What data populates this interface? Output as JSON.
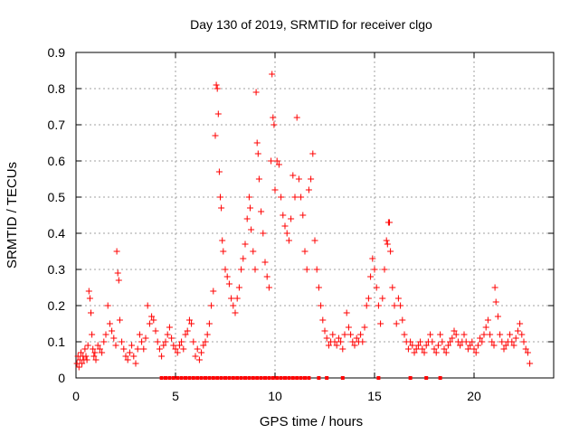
{
  "chart_data": {
    "type": "scatter",
    "title": "Day 130 of 2019, SRMTID for receiver clgo",
    "xlabel": "GPS time / hours",
    "ylabel": "SRMTID / TECUs",
    "xlim": [
      0,
      24
    ],
    "ylim": [
      0,
      0.9
    ],
    "x_ticks": [
      0,
      5,
      10,
      15,
      20
    ],
    "x_tick_labels": [
      "0",
      "5",
      "10",
      "15",
      "20"
    ],
    "y_ticks": [
      0,
      0.1,
      0.2,
      0.3,
      0.4,
      0.5,
      0.6,
      0.7,
      0.8,
      0.9
    ],
    "y_tick_labels": [
      "0",
      "0.1",
      "0.2",
      "0.3",
      "0.4",
      "0.5",
      "0.6",
      "0.7",
      "0.8",
      "0.9"
    ],
    "grid": true,
    "marker": "+",
    "color": "#ff0000",
    "series": [
      {
        "name": "SRMTID",
        "points": [
          [
            0.05,
            0.04
          ],
          [
            0.1,
            0.06
          ],
          [
            0.15,
            0.03
          ],
          [
            0.2,
            0.05
          ],
          [
            0.25,
            0.07
          ],
          [
            0.3,
            0.04
          ],
          [
            0.35,
            0.06
          ],
          [
            0.4,
            0.05
          ],
          [
            0.45,
            0.08
          ],
          [
            0.5,
            0.06
          ],
          [
            0.55,
            0.05
          ],
          [
            0.6,
            0.09
          ],
          [
            0.65,
            0.24
          ],
          [
            0.7,
            0.22
          ],
          [
            0.75,
            0.18
          ],
          [
            0.8,
            0.12
          ],
          [
            0.85,
            0.08
          ],
          [
            0.9,
            0.06
          ],
          [
            0.95,
            0.07
          ],
          [
            1.0,
            0.05
          ],
          [
            1.1,
            0.09
          ],
          [
            1.2,
            0.08
          ],
          [
            1.3,
            0.07
          ],
          [
            1.4,
            0.1
          ],
          [
            1.5,
            0.12
          ],
          [
            1.6,
            0.2
          ],
          [
            1.7,
            0.15
          ],
          [
            1.8,
            0.13
          ],
          [
            1.9,
            0.11
          ],
          [
            2.0,
            0.09
          ],
          [
            2.05,
            0.35
          ],
          [
            2.1,
            0.29
          ],
          [
            2.15,
            0.27
          ],
          [
            2.2,
            0.16
          ],
          [
            2.3,
            0.1
          ],
          [
            2.4,
            0.08
          ],
          [
            2.5,
            0.06
          ],
          [
            2.6,
            0.05
          ],
          [
            2.7,
            0.07
          ],
          [
            2.8,
            0.09
          ],
          [
            2.9,
            0.06
          ],
          [
            3.0,
            0.04
          ],
          [
            3.1,
            0.08
          ],
          [
            3.2,
            0.12
          ],
          [
            3.3,
            0.1
          ],
          [
            3.4,
            0.08
          ],
          [
            3.5,
            0.11
          ],
          [
            3.6,
            0.2
          ],
          [
            3.7,
            0.15
          ],
          [
            3.8,
            0.17
          ],
          [
            3.9,
            0.16
          ],
          [
            4.0,
            0.13
          ],
          [
            4.1,
            0.1
          ],
          [
            4.2,
            0.08
          ],
          [
            4.3,
            0.06
          ],
          [
            4.4,
            0.09
          ],
          [
            4.5,
            0.1
          ],
          [
            4.6,
            0.12
          ],
          [
            4.7,
            0.14
          ],
          [
            4.8,
            0.11
          ],
          [
            4.9,
            0.09
          ],
          [
            5.0,
            0.08
          ],
          [
            5.1,
            0.07
          ],
          [
            5.2,
            0.09
          ],
          [
            5.3,
            0.1
          ],
          [
            5.4,
            0.08
          ],
          [
            5.5,
            0.12
          ],
          [
            5.6,
            0.13
          ],
          [
            5.7,
            0.16
          ],
          [
            5.8,
            0.15
          ],
          [
            5.9,
            0.1
          ],
          [
            6.0,
            0.06
          ],
          [
            6.1,
            0.08
          ],
          [
            6.2,
            0.05
          ],
          [
            6.3,
            0.07
          ],
          [
            6.4,
            0.09
          ],
          [
            6.5,
            0.1
          ],
          [
            6.6,
            0.12
          ],
          [
            6.7,
            0.15
          ],
          [
            6.8,
            0.2
          ],
          [
            6.9,
            0.24
          ],
          [
            7.0,
            0.67
          ],
          [
            7.05,
            0.81
          ],
          [
            7.1,
            0.8
          ],
          [
            7.15,
            0.73
          ],
          [
            7.2,
            0.57
          ],
          [
            7.25,
            0.5
          ],
          [
            7.3,
            0.47
          ],
          [
            7.35,
            0.38
          ],
          [
            7.4,
            0.35
          ],
          [
            7.5,
            0.3
          ],
          [
            7.6,
            0.28
          ],
          [
            7.7,
            0.26
          ],
          [
            7.8,
            0.22
          ],
          [
            7.9,
            0.2
          ],
          [
            8.0,
            0.18
          ],
          [
            8.1,
            0.22
          ],
          [
            8.2,
            0.25
          ],
          [
            8.3,
            0.3
          ],
          [
            8.4,
            0.33
          ],
          [
            8.5,
            0.37
          ],
          [
            8.6,
            0.44
          ],
          [
            8.7,
            0.5
          ],
          [
            8.75,
            0.47
          ],
          [
            8.8,
            0.41
          ],
          [
            8.9,
            0.35
          ],
          [
            9.0,
            0.3
          ],
          [
            9.05,
            0.79
          ],
          [
            9.1,
            0.65
          ],
          [
            9.15,
            0.62
          ],
          [
            9.2,
            0.55
          ],
          [
            9.3,
            0.46
          ],
          [
            9.4,
            0.4
          ],
          [
            9.5,
            0.32
          ],
          [
            9.6,
            0.28
          ],
          [
            9.7,
            0.25
          ],
          [
            9.8,
            0.6
          ],
          [
            9.85,
            0.84
          ],
          [
            9.9,
            0.72
          ],
          [
            9.95,
            0.7
          ],
          [
            10.0,
            0.52
          ],
          [
            10.1,
            0.6
          ],
          [
            10.2,
            0.59
          ],
          [
            10.3,
            0.5
          ],
          [
            10.4,
            0.45
          ],
          [
            10.5,
            0.42
          ],
          [
            10.6,
            0.4
          ],
          [
            10.7,
            0.38
          ],
          [
            10.8,
            0.44
          ],
          [
            10.9,
            0.56
          ],
          [
            11.0,
            0.5
          ],
          [
            11.1,
            0.72
          ],
          [
            11.2,
            0.55
          ],
          [
            11.3,
            0.5
          ],
          [
            11.4,
            0.45
          ],
          [
            11.5,
            0.35
          ],
          [
            11.6,
            0.3
          ],
          [
            11.7,
            0.52
          ],
          [
            11.8,
            0.55
          ],
          [
            11.9,
            0.62
          ],
          [
            12.0,
            0.38
          ],
          [
            12.1,
            0.3
          ],
          [
            12.2,
            0.25
          ],
          [
            12.3,
            0.2
          ],
          [
            12.4,
            0.16
          ],
          [
            12.5,
            0.13
          ],
          [
            12.6,
            0.11
          ],
          [
            12.7,
            0.09
          ],
          [
            12.8,
            0.1
          ],
          [
            12.9,
            0.12
          ],
          [
            13.0,
            0.1
          ],
          [
            13.1,
            0.09
          ],
          [
            13.2,
            0.11
          ],
          [
            13.3,
            0.1
          ],
          [
            13.4,
            0.08
          ],
          [
            13.5,
            0.12
          ],
          [
            13.6,
            0.18
          ],
          [
            13.7,
            0.14
          ],
          [
            13.8,
            0.12
          ],
          [
            13.9,
            0.1
          ],
          [
            14.0,
            0.09
          ],
          [
            14.1,
            0.11
          ],
          [
            14.2,
            0.1
          ],
          [
            14.3,
            0.12
          ],
          [
            14.4,
            0.1
          ],
          [
            14.5,
            0.14
          ],
          [
            14.6,
            0.2
          ],
          [
            14.7,
            0.22
          ],
          [
            14.8,
            0.28
          ],
          [
            14.9,
            0.33
          ],
          [
            15.0,
            0.3
          ],
          [
            15.1,
            0.25
          ],
          [
            15.2,
            0.2
          ],
          [
            15.3,
            0.15
          ],
          [
            15.4,
            0.22
          ],
          [
            15.5,
            0.3
          ],
          [
            15.6,
            0.38
          ],
          [
            15.65,
            0.37
          ],
          [
            15.7,
            0.43
          ],
          [
            15.75,
            0.43
          ],
          [
            15.8,
            0.35
          ],
          [
            15.9,
            0.25
          ],
          [
            16.0,
            0.2
          ],
          [
            16.1,
            0.15
          ],
          [
            16.2,
            0.22
          ],
          [
            16.3,
            0.2
          ],
          [
            16.4,
            0.16
          ],
          [
            16.5,
            0.12
          ],
          [
            16.6,
            0.1
          ],
          [
            16.7,
            0.08
          ],
          [
            16.8,
            0.1
          ],
          [
            16.9,
            0.09
          ],
          [
            17.0,
            0.07
          ],
          [
            17.1,
            0.08
          ],
          [
            17.2,
            0.09
          ],
          [
            17.3,
            0.1
          ],
          [
            17.4,
            0.08
          ],
          [
            17.5,
            0.07
          ],
          [
            17.6,
            0.09
          ],
          [
            17.7,
            0.1
          ],
          [
            17.8,
            0.12
          ],
          [
            17.9,
            0.1
          ],
          [
            18.0,
            0.08
          ],
          [
            18.1,
            0.07
          ],
          [
            18.2,
            0.09
          ],
          [
            18.3,
            0.12
          ],
          [
            18.4,
            0.1
          ],
          [
            18.5,
            0.08
          ],
          [
            18.6,
            0.07
          ],
          [
            18.7,
            0.09
          ],
          [
            18.8,
            0.1
          ],
          [
            18.9,
            0.11
          ],
          [
            19.0,
            0.13
          ],
          [
            19.1,
            0.12
          ],
          [
            19.2,
            0.1
          ],
          [
            19.3,
            0.09
          ],
          [
            19.4,
            0.1
          ],
          [
            19.5,
            0.12
          ],
          [
            19.6,
            0.1
          ],
          [
            19.7,
            0.08
          ],
          [
            19.8,
            0.09
          ],
          [
            19.9,
            0.1
          ],
          [
            20.0,
            0.08
          ],
          [
            20.1,
            0.07
          ],
          [
            20.2,
            0.09
          ],
          [
            20.3,
            0.11
          ],
          [
            20.4,
            0.1
          ],
          [
            20.5,
            0.12
          ],
          [
            20.6,
            0.14
          ],
          [
            20.7,
            0.16
          ],
          [
            20.8,
            0.12
          ],
          [
            20.9,
            0.1
          ],
          [
            21.0,
            0.09
          ],
          [
            21.05,
            0.25
          ],
          [
            21.1,
            0.21
          ],
          [
            21.2,
            0.17
          ],
          [
            21.3,
            0.12
          ],
          [
            21.4,
            0.1
          ],
          [
            21.5,
            0.08
          ],
          [
            21.6,
            0.09
          ],
          [
            21.7,
            0.1
          ],
          [
            21.8,
            0.12
          ],
          [
            21.9,
            0.1
          ],
          [
            22.0,
            0.09
          ],
          [
            22.1,
            0.11
          ],
          [
            22.2,
            0.13
          ],
          [
            22.3,
            0.15
          ],
          [
            22.4,
            0.12
          ],
          [
            22.5,
            0.1
          ],
          [
            22.6,
            0.08
          ],
          [
            22.7,
            0.07
          ],
          [
            22.8,
            0.04
          ]
        ]
      }
    ],
    "zero_markers_x": [
      4.3,
      4.5,
      4.7,
      4.9,
      5.1,
      5.3,
      5.5,
      5.7,
      5.9,
      6.1,
      6.3,
      6.5,
      6.7,
      6.9,
      7.1,
      7.3,
      7.5,
      7.7,
      7.9,
      8.1,
      8.3,
      8.5,
      8.7,
      8.9,
      9.1,
      9.3,
      9.5,
      9.7,
      9.9,
      10.1,
      10.3,
      10.5,
      10.7,
      10.9,
      11.1,
      11.3,
      11.5,
      11.7,
      12.2,
      12.6,
      13.4,
      15.2,
      16.8,
      17.6,
      18.3
    ]
  }
}
